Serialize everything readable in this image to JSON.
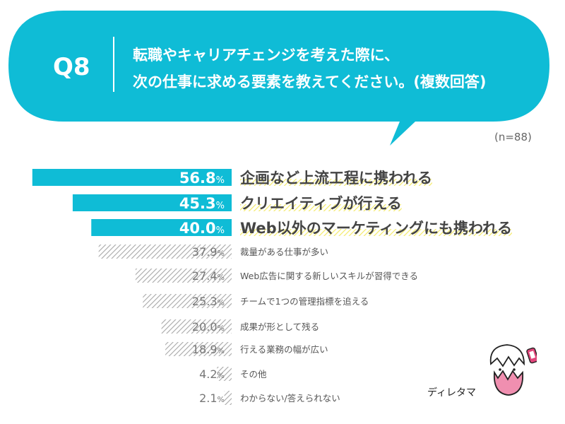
{
  "question": {
    "label": "Q8",
    "line1": "転職やキャリアチェンジを考えた際に、",
    "line2": "次の仕事に求める要素を教えてください。(複数回答)"
  },
  "sample": "(n=88)",
  "mascot": {
    "label": "ディレタマ",
    "icon": "egg-mascot-icon"
  },
  "colors": {
    "accent": "#0fbcd6",
    "highlight": "#f4ea6a",
    "muted": "#9a9a9a"
  },
  "chart_data": {
    "type": "bar",
    "orientation": "horizontal",
    "unit": "%",
    "xlim": [
      0,
      60
    ],
    "categories": [
      "企画など上流工程に携われる",
      "クリエイティブが行える",
      "Web以外のマーケティングにも携われる",
      "裁量がある仕事が多い",
      "Web広告に関する新しいスキルが習得できる",
      "チームで1つの管理指標を追える",
      "成果が形として残る",
      "行える業務の幅が広い",
      "その他",
      "わからない/答えられない"
    ],
    "values": [
      56.8,
      45.3,
      40.0,
      37.9,
      27.4,
      25.3,
      20.0,
      18.9,
      4.2,
      2.1
    ],
    "value_labels": [
      "56.8",
      "45.3",
      "40.0",
      "37.9",
      "27.4",
      "25.3",
      "20.0",
      "18.9",
      "4.2",
      "2.1"
    ],
    "highlighted_top": 3
  }
}
